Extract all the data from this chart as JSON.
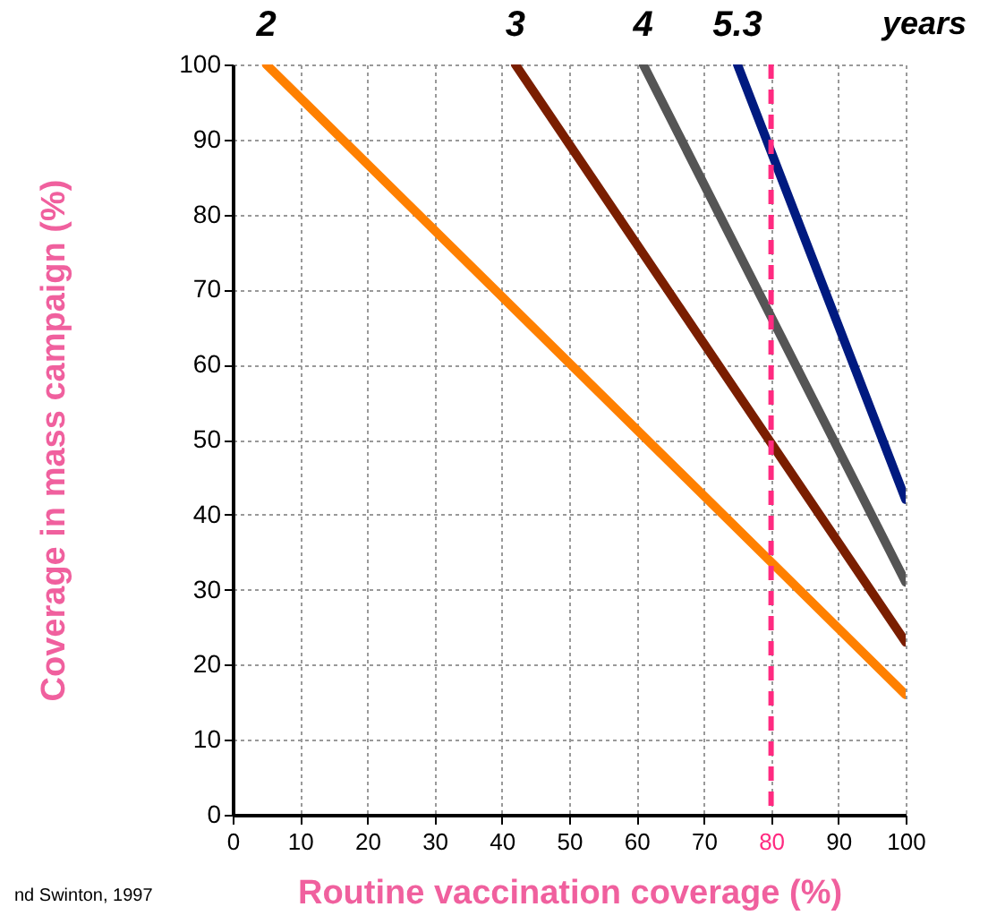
{
  "chart_data": {
    "type": "line",
    "xlabel": "Routine vaccination coverage (%)",
    "ylabel": "Coverage in mass campaign (%)",
    "annotations": [
      "years",
      "nd Swinton, 1997"
    ],
    "series": [
      {
        "name": "2",
        "color": "#ff8000",
        "x": [
          5,
          100
        ],
        "values": [
          100,
          16
        ]
      },
      {
        "name": "3",
        "color": "#7a1e00",
        "x": [
          42,
          100
        ],
        "values": [
          100,
          23
        ]
      },
      {
        "name": "4",
        "color": "#555555",
        "x": [
          61,
          100
        ],
        "values": [
          100,
          31
        ]
      },
      {
        "name": "5.3",
        "color": "#001a80",
        "x": [
          75,
          100
        ],
        "values": [
          100,
          42
        ]
      }
    ],
    "xlim": [
      0,
      100
    ],
    "xticks": [
      0,
      10,
      20,
      30,
      40,
      50,
      60,
      70,
      80,
      90,
      100
    ],
    "ylim": [
      0,
      100
    ],
    "yticks": [
      0,
      10,
      20,
      30,
      40,
      50,
      60,
      70,
      80,
      90,
      100
    ],
    "grid": true,
    "ref_lines": [
      {
        "axis": "x",
        "value": 80,
        "color": "#ff2a80",
        "line_style": "dashed"
      }
    ]
  }
}
